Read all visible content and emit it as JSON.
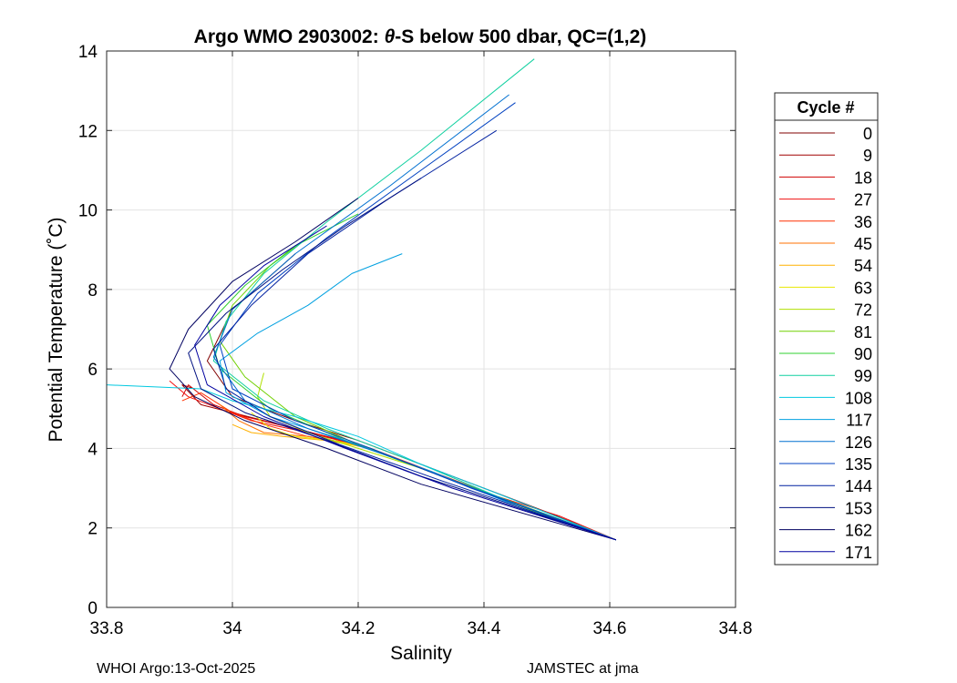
{
  "chart_data": {
    "type": "line",
    "title_prefix": "Argo WMO 2903002: ",
    "title_symbol": "θ",
    "title_suffix": "-S below 500 dbar,  QC=(1,2)",
    "xlabel": "Salinity",
    "ylabel": "Potential Temperature (˚C)",
    "xlim": [
      33.8,
      34.8
    ],
    "ylim": [
      0,
      14
    ],
    "xticks": [
      33.8,
      34,
      34.2,
      34.4,
      34.6,
      34.8
    ],
    "xtick_labels": [
      "33.8",
      "34",
      "34.2",
      "34.4",
      "34.6",
      "34.8"
    ],
    "yticks": [
      0,
      2,
      4,
      6,
      8,
      10,
      12,
      14
    ],
    "ytick_labels": [
      "0",
      "2",
      "4",
      "6",
      "8",
      "10",
      "12",
      "14"
    ],
    "grid": true,
    "legend_title": "Cycle #",
    "legend_position": "right, outside",
    "series": [
      {
        "name": "0",
        "color": "#800000",
        "s": [
          34.1,
          34.0,
          33.96,
          34.0,
          34.1,
          34.2,
          34.3,
          34.4,
          34.5,
          34.61
        ],
        "t": [
          8.9,
          7.5,
          6.2,
          5.3,
          4.7,
          4.2,
          3.6,
          3.0,
          2.4,
          1.7
        ]
      },
      {
        "name": "9",
        "color": "#a00000",
        "s": [
          33.94,
          33.92,
          33.95,
          34.0,
          34.1,
          34.2,
          34.3,
          34.4,
          34.5,
          34.61
        ],
        "t": [
          5.5,
          5.6,
          5.1,
          4.9,
          4.5,
          4.1,
          3.5,
          2.9,
          2.3,
          1.7
        ]
      },
      {
        "name": "18",
        "color": "#d00000",
        "s": [
          33.92,
          33.93,
          33.97,
          34.02,
          34.1,
          34.2,
          34.3,
          34.4,
          34.5,
          34.61
        ],
        "t": [
          5.3,
          5.6,
          5.1,
          4.8,
          4.5,
          4.1,
          3.5,
          2.9,
          2.3,
          1.7
        ]
      },
      {
        "name": "27",
        "color": "#f01010",
        "s": [
          33.9,
          33.93,
          33.98,
          34.03,
          34.12,
          34.22,
          34.32,
          34.42,
          34.52,
          34.61
        ],
        "t": [
          5.7,
          5.3,
          5.0,
          4.7,
          4.4,
          4.0,
          3.4,
          2.8,
          2.3,
          1.7
        ]
      },
      {
        "name": "36",
        "color": "#ff3000",
        "s": [
          33.92,
          33.95,
          34.0,
          34.05,
          34.12,
          34.2,
          34.3,
          34.4,
          34.5,
          34.61
        ],
        "t": [
          5.2,
          5.4,
          4.9,
          4.6,
          4.3,
          4.1,
          3.5,
          2.9,
          2.3,
          1.7
        ]
      },
      {
        "name": "45",
        "color": "#ff7000",
        "s": [
          33.98,
          34.01,
          34.05,
          34.12,
          34.2,
          34.3,
          34.4,
          34.5,
          34.61
        ],
        "t": [
          5.1,
          4.7,
          4.4,
          4.3,
          4.1,
          3.5,
          2.9,
          2.3,
          1.7
        ]
      },
      {
        "name": "54",
        "color": "#ffb000",
        "s": [
          34.0,
          34.03,
          34.08,
          34.15,
          34.22,
          34.3,
          34.4,
          34.5,
          34.61
        ],
        "t": [
          4.6,
          4.4,
          4.3,
          4.2,
          4.0,
          3.5,
          2.9,
          2.3,
          1.7
        ]
      },
      {
        "name": "63",
        "color": "#e8e800",
        "s": [
          34.03,
          34.06,
          34.1,
          34.16,
          34.22,
          34.3,
          34.4,
          34.5,
          34.61
        ],
        "t": [
          4.9,
          4.5,
          4.3,
          4.2,
          4.0,
          3.5,
          2.9,
          2.3,
          1.7
        ]
      },
      {
        "name": "72",
        "color": "#b0e000",
        "s": [
          34.05,
          34.04,
          34.06,
          34.12,
          34.2,
          34.3,
          34.4,
          34.5,
          34.61
        ],
        "t": [
          5.9,
          5.3,
          4.8,
          4.4,
          4.0,
          3.5,
          2.9,
          2.3,
          1.7
        ]
      },
      {
        "name": "81",
        "color": "#70d000",
        "s": [
          34.12,
          34.06,
          34.0,
          33.98,
          34.02,
          34.1,
          34.2,
          34.3,
          34.4,
          34.5,
          34.61
        ],
        "t": [
          9.3,
          8.6,
          7.6,
          6.7,
          5.8,
          4.8,
          4.1,
          3.5,
          2.9,
          2.3,
          1.7
        ]
      },
      {
        "name": "90",
        "color": "#30d030",
        "s": [
          34.2,
          34.1,
          34.02,
          33.96,
          33.98,
          34.06,
          34.18,
          34.3,
          34.42,
          34.61
        ],
        "t": [
          9.9,
          9.1,
          8.1,
          7.1,
          6.0,
          5.0,
          4.2,
          3.5,
          2.8,
          1.7
        ]
      },
      {
        "name": "99",
        "color": "#10d0a0",
        "s": [
          34.48,
          34.3,
          34.15,
          34.05,
          33.99,
          33.97,
          34.05,
          34.15,
          34.3,
          34.45,
          34.61
        ],
        "t": [
          13.8,
          11.5,
          9.7,
          8.4,
          7.2,
          6.2,
          5.2,
          4.5,
          3.6,
          2.6,
          1.7
        ]
      },
      {
        "name": "108",
        "color": "#00c8e0",
        "s": [
          33.8,
          33.95,
          34.0,
          34.1,
          34.2,
          34.3,
          34.4,
          34.61
        ],
        "t": [
          5.6,
          5.5,
          5.2,
          4.8,
          4.3,
          3.6,
          3.0,
          1.7
        ]
      },
      {
        "name": "117",
        "color": "#00a0e0",
        "s": [
          34.27,
          34.19,
          34.12,
          34.04,
          33.98,
          33.99,
          34.06,
          34.18,
          34.32,
          34.46,
          34.61
        ],
        "t": [
          8.9,
          8.4,
          7.6,
          6.9,
          6.2,
          5.4,
          4.8,
          4.2,
          3.4,
          2.5,
          1.7
        ]
      },
      {
        "name": "126",
        "color": "#0070d0",
        "s": [
          34.44,
          34.25,
          34.1,
          34.0,
          33.97,
          34.02,
          34.12,
          34.25,
          34.4,
          34.61
        ],
        "t": [
          12.9,
          10.6,
          8.9,
          7.5,
          6.3,
          5.2,
          4.5,
          3.8,
          2.9,
          1.7
        ]
      },
      {
        "name": "135",
        "color": "#0040c0",
        "s": [
          34.45,
          34.3,
          34.15,
          34.04,
          33.98,
          34.0,
          34.1,
          34.22,
          34.38,
          34.61
        ],
        "t": [
          12.7,
          11.0,
          9.3,
          7.9,
          6.6,
          5.5,
          4.7,
          4.0,
          3.0,
          1.7
        ]
      },
      {
        "name": "144",
        "color": "#0020a0",
        "s": [
          34.42,
          34.25,
          34.12,
          34.03,
          33.97,
          33.99,
          34.06,
          34.17,
          34.33,
          34.61
        ],
        "t": [
          12.0,
          10.3,
          8.9,
          7.6,
          6.5,
          5.5,
          4.8,
          4.1,
          3.2,
          1.7
        ]
      },
      {
        "name": "153",
        "color": "#001080",
        "s": [
          34.3,
          34.18,
          34.08,
          33.99,
          33.93,
          33.95,
          34.02,
          34.15,
          34.3,
          34.61
        ],
        "t": [
          10.8,
          9.6,
          8.5,
          7.4,
          6.4,
          5.5,
          4.9,
          4.2,
          3.3,
          1.7
        ]
      },
      {
        "name": "162",
        "color": "#000060",
        "s": [
          34.2,
          34.1,
          34.0,
          33.93,
          33.9,
          33.94,
          34.02,
          34.15,
          34.3,
          34.61
        ],
        "t": [
          10.3,
          9.2,
          8.2,
          7.0,
          6.0,
          5.3,
          4.7,
          4.0,
          3.1,
          1.7
        ]
      },
      {
        "name": "171",
        "color": "#0000a0",
        "s": [
          34.15,
          34.05,
          33.98,
          33.94,
          33.96,
          34.05,
          34.18,
          34.35,
          34.61
        ],
        "t": [
          9.6,
          8.6,
          7.6,
          6.6,
          5.6,
          4.8,
          4.0,
          3.0,
          1.7
        ]
      }
    ]
  },
  "footer": {
    "left": "WHOI Argo:13-Oct-2025",
    "right": "JAMSTEC at jma"
  }
}
